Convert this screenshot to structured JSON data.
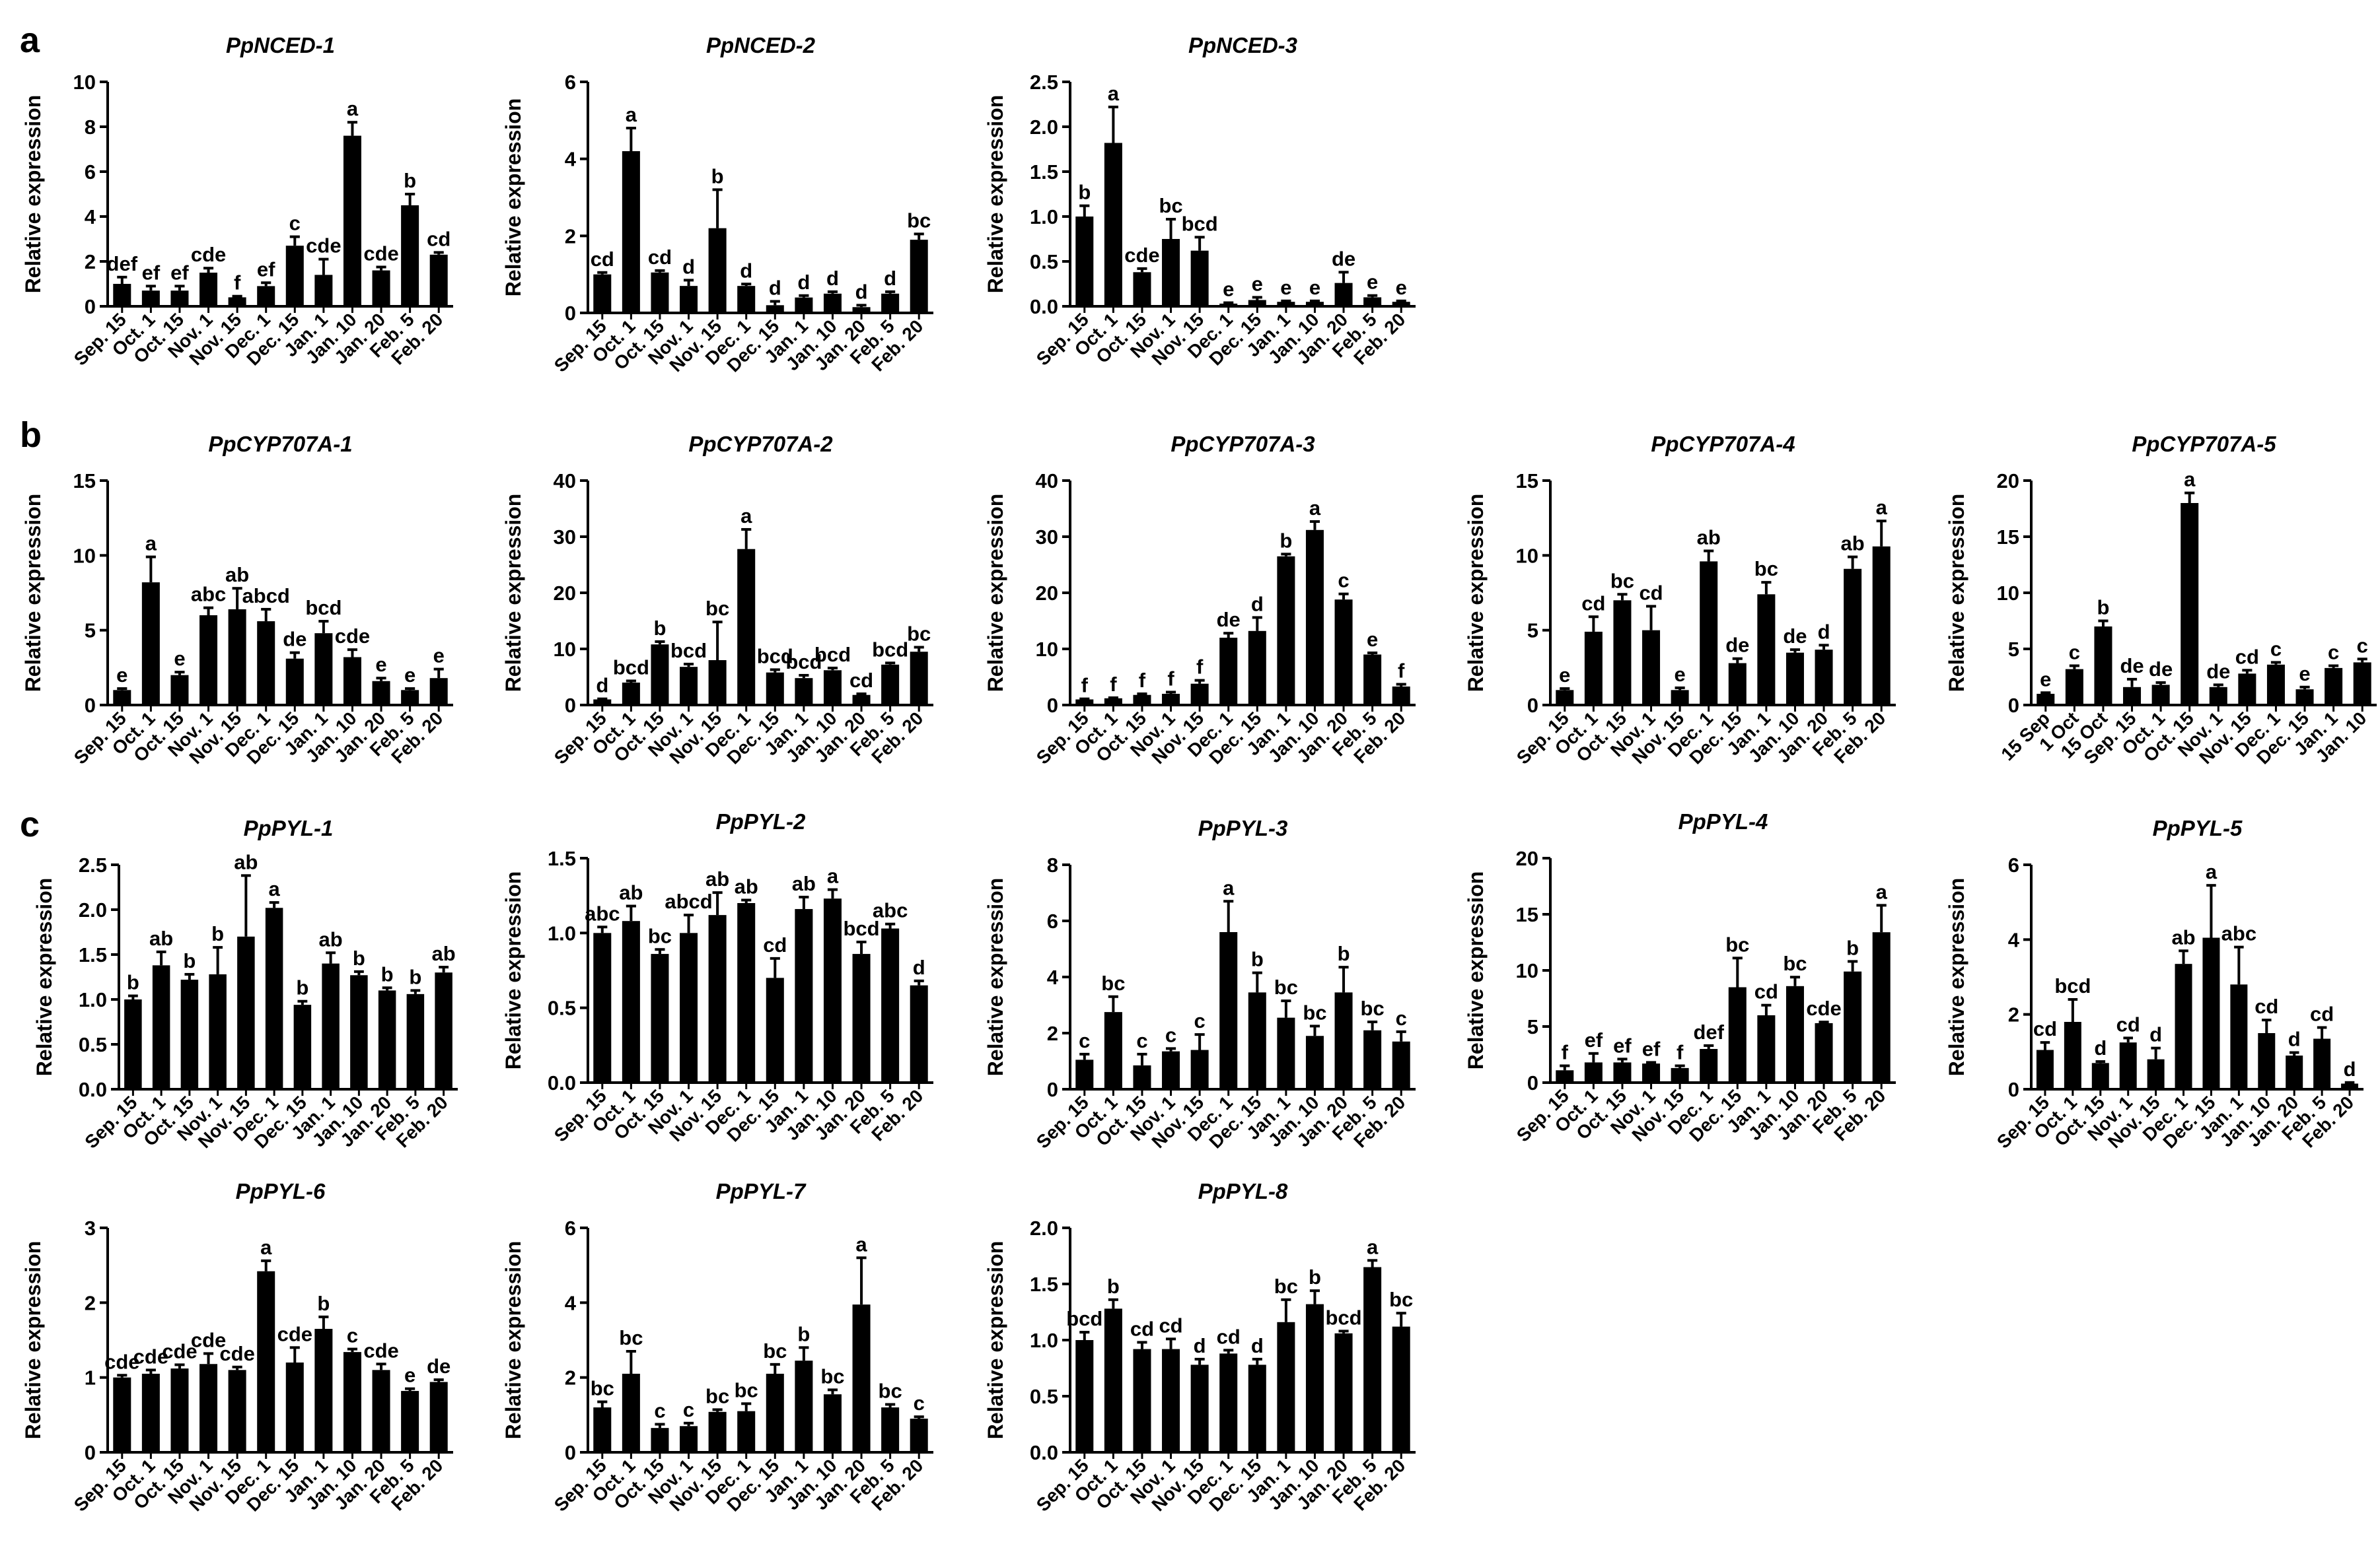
{
  "panel_labels": [
    "a",
    "b",
    "c"
  ],
  "chart_data": [
    {
      "type": "bar",
      "panel": "a",
      "title": "PpNCED-1",
      "ylabel": "Relative expression",
      "categories": [
        "Sep. 15",
        "Oct. 1",
        "Oct. 15",
        "Nov. 1",
        "Nov. 15",
        "Dec. 1",
        "Dec. 15",
        "Jan. 1",
        "Jan. 10",
        "Jan. 20",
        "Feb. 5",
        "Feb. 20"
      ],
      "values": [
        1.0,
        0.7,
        0.7,
        1.5,
        0.4,
        0.9,
        2.7,
        1.4,
        7.6,
        1.6,
        4.5,
        2.3
      ],
      "errors": [
        0.3,
        0.2,
        0.2,
        0.2,
        0.05,
        0.15,
        0.4,
        0.7,
        0.6,
        0.15,
        0.5,
        0.1
      ],
      "letters": [
        "def",
        "ef",
        "ef",
        "cde",
        "f",
        "ef",
        "c",
        "cde",
        "a",
        "cde",
        "b",
        "cd"
      ],
      "ylim": [
        0,
        10
      ],
      "yticks": [
        "0",
        "2",
        "4",
        "6",
        "8",
        "10"
      ]
    },
    {
      "type": "bar",
      "panel": "a",
      "title": "PpNCED-2",
      "ylabel": "Relative expression",
      "categories": [
        "Sep. 15",
        "Oct. 1",
        "Oct. 15",
        "Nov. 1",
        "Nov. 15",
        "Dec. 1",
        "Dec. 15",
        "Jan. 1",
        "Jan. 10",
        "Jan. 20",
        "Feb. 5",
        "Feb. 20"
      ],
      "values": [
        1.0,
        4.2,
        1.05,
        0.7,
        2.2,
        0.7,
        0.2,
        0.4,
        0.5,
        0.15,
        0.5,
        1.9
      ],
      "errors": [
        0.05,
        0.6,
        0.05,
        0.15,
        1.0,
        0.05,
        0.1,
        0.05,
        0.05,
        0.05,
        0.05,
        0.15
      ],
      "letters": [
        "cd",
        "a",
        "cd",
        "d",
        "b",
        "d",
        "d",
        "d",
        "d",
        "d",
        "d",
        "bc"
      ],
      "ylim": [
        0,
        6
      ],
      "yticks": [
        "0",
        "2",
        "4",
        "6"
      ]
    },
    {
      "type": "bar",
      "panel": "a",
      "title": "PpNCED-3",
      "ylabel": "Relative expression",
      "categories": [
        "Sep. 15",
        "Oct. 1",
        "Oct. 15",
        "Nov. 1",
        "Nov. 15",
        "Dec. 1",
        "Dec. 15",
        "Jan. 1",
        "Jan. 10",
        "Jan. 20",
        "Feb. 5",
        "Feb. 20"
      ],
      "values": [
        1.0,
        1.82,
        0.38,
        0.75,
        0.62,
        0.03,
        0.07,
        0.05,
        0.05,
        0.26,
        0.1,
        0.05
      ],
      "errors": [
        0.12,
        0.4,
        0.04,
        0.22,
        0.15,
        0.01,
        0.03,
        0.01,
        0.01,
        0.12,
        0.02,
        0.01
      ],
      "letters": [
        "b",
        "a",
        "cde",
        "bc",
        "bcd",
        "e",
        "e",
        "e",
        "e",
        "de",
        "e",
        "e"
      ],
      "ylim": [
        0,
        2.5
      ],
      "yticks": [
        "0.0",
        "0.5",
        "1.0",
        "1.5",
        "2.0",
        "2.5"
      ]
    },
    {
      "type": "bar",
      "panel": "b",
      "title": "PpCYP707A-1",
      "ylabel": "Relative expression",
      "categories": [
        "Sep. 15",
        "Oct. 1",
        "Oct. 15",
        "Nov. 1",
        "Nov. 15",
        "Dec. 1",
        "Dec. 15",
        "Jan. 1",
        "Jan. 10",
        "Jan. 20",
        "Feb. 5",
        "Feb. 20"
      ],
      "values": [
        1.0,
        8.2,
        2.0,
        6.0,
        6.4,
        5.6,
        3.1,
        4.8,
        3.2,
        1.6,
        1.0,
        1.8
      ],
      "errors": [
        0.1,
        1.7,
        0.2,
        0.5,
        1.4,
        0.8,
        0.4,
        0.8,
        0.5,
        0.2,
        0.1,
        0.6
      ],
      "letters": [
        "e",
        "a",
        "e",
        "abc",
        "ab",
        "abcd",
        "de",
        "bcd",
        "cde",
        "e",
        "e",
        "e"
      ],
      "ylim": [
        0,
        15
      ],
      "yticks": [
        "0",
        "5",
        "10",
        "15"
      ]
    },
    {
      "type": "bar",
      "panel": "b",
      "title": "PpCYP707A-2",
      "ylabel": "Relative expression",
      "categories": [
        "Sep. 15",
        "Oct. 1",
        "Oct. 15",
        "Nov. 1",
        "Nov. 15",
        "Dec. 1",
        "Dec. 15",
        "Jan. 1",
        "Jan. 10",
        "Jan. 20",
        "Feb. 5",
        "Feb. 20"
      ],
      "values": [
        1.0,
        4.0,
        10.8,
        6.8,
        8.0,
        27.8,
        5.8,
        4.8,
        6.2,
        1.8,
        7.2,
        9.5
      ],
      "errors": [
        0.1,
        0.3,
        0.5,
        0.5,
        6.8,
        3.5,
        0.5,
        0.5,
        0.4,
        0.2,
        0.3,
        0.8
      ],
      "letters": [
        "d",
        "bcd",
        "b",
        "bcd",
        "bc",
        "a",
        "bcd",
        "bcd",
        "bcd",
        "cd",
        "bcd",
        "bc"
      ],
      "ylim": [
        0,
        40
      ],
      "yticks": [
        "0",
        "10",
        "20",
        "30",
        "40"
      ]
    },
    {
      "type": "bar",
      "panel": "b",
      "title": "PpCYP707A-3",
      "ylabel": "Relative expression",
      "categories": [
        "Sep. 15",
        "Oct. 1",
        "Oct. 15",
        "Nov. 1",
        "Nov. 15",
        "Dec. 1",
        "Dec. 15",
        "Jan. 1",
        "Jan. 10",
        "Jan. 20",
        "Feb. 5",
        "Feb. 20"
      ],
      "values": [
        1.0,
        1.2,
        1.8,
        2.0,
        3.8,
        12.0,
        13.2,
        26.5,
        31.2,
        18.8,
        9.0,
        3.3
      ],
      "errors": [
        0.1,
        0.1,
        0.2,
        0.3,
        0.6,
        0.8,
        2.4,
        0.4,
        1.5,
        1.0,
        0.3,
        0.4
      ],
      "letters": [
        "f",
        "f",
        "f",
        "f",
        "f",
        "de",
        "d",
        "b",
        "a",
        "c",
        "e",
        "f"
      ],
      "ylim": [
        0,
        40
      ],
      "yticks": [
        "0",
        "10",
        "20",
        "30",
        "40"
      ]
    },
    {
      "type": "bar",
      "panel": "b",
      "title": "PpCYP707A-4",
      "ylabel": "Relative expression",
      "categories": [
        "Sep. 15",
        "Oct. 1",
        "Oct. 15",
        "Nov. 1",
        "Nov. 15",
        "Dec. 1",
        "Dec. 15",
        "Jan. 1",
        "Jan. 10",
        "Jan. 20",
        "Feb. 5",
        "Feb. 20"
      ],
      "values": [
        1.0,
        4.9,
        7.0,
        5.0,
        1.0,
        9.6,
        2.8,
        7.4,
        3.5,
        3.7,
        9.1,
        10.6
      ],
      "errors": [
        0.1,
        1.0,
        0.4,
        1.6,
        0.15,
        0.7,
        0.3,
        0.8,
        0.2,
        0.3,
        0.8,
        1.7
      ],
      "letters": [
        "e",
        "cd",
        "bc",
        "cd",
        "e",
        "ab",
        "de",
        "bc",
        "de",
        "d",
        "ab",
        "a"
      ],
      "ylim": [
        0,
        15
      ],
      "yticks": [
        "0",
        "5",
        "10",
        "15"
      ]
    },
    {
      "type": "bar",
      "panel": "b",
      "title": "PpCYP707A-5",
      "ylabel": "Relative expression",
      "categories": [
        "15 Sep",
        "1 Oct",
        "15 Oct",
        "Sep. 15",
        "Oct. 1",
        "Oct. 15",
        "Nov. 1",
        "Nov. 15",
        "Dec. 1",
        "Dec. 15",
        "Jan. 1",
        "Jan. 10"
      ],
      "values": [
        1.0,
        3.2,
        7.0,
        1.6,
        1.8,
        18.0,
        1.6,
        2.8,
        3.6,
        1.4,
        3.3,
        3.8
      ],
      "errors": [
        0.1,
        0.3,
        0.5,
        0.7,
        0.2,
        0.9,
        0.2,
        0.3,
        0.2,
        0.2,
        0.2,
        0.3
      ],
      "letters": [
        "e",
        "c",
        "b",
        "de",
        "de",
        "a",
        "de",
        "cd",
        "c",
        "e",
        "c",
        "c"
      ],
      "ylim": [
        0,
        20
      ],
      "yticks": [
        "0",
        "5",
        "10",
        "15",
        "20"
      ]
    },
    {
      "type": "bar",
      "panel": "c",
      "title": "PpPYL-1",
      "ylabel": "Relative expression",
      "categories": [
        "Sep. 15",
        "Oct. 1",
        "Oct. 15",
        "Nov. 1",
        "Nov. 15",
        "Dec. 1",
        "Dec. 15",
        "Jan. 1",
        "Jan. 10",
        "Jan. 20",
        "Feb. 5",
        "Feb. 20"
      ],
      "values": [
        1.0,
        1.38,
        1.22,
        1.28,
        1.7,
        2.02,
        0.94,
        1.4,
        1.27,
        1.1,
        1.06,
        1.3
      ],
      "errors": [
        0.04,
        0.15,
        0.06,
        0.3,
        0.68,
        0.06,
        0.04,
        0.12,
        0.04,
        0.03,
        0.04,
        0.06
      ],
      "letters": [
        "b",
        "ab",
        "b",
        "b",
        "ab",
        "a",
        "b",
        "ab",
        "b",
        "b",
        "b",
        "ab"
      ],
      "ylim": [
        0,
        2.5
      ],
      "yticks": [
        "0.0",
        "0.5",
        "1.0",
        "1.5",
        "2.0",
        "2.5"
      ]
    },
    {
      "type": "bar",
      "panel": "c",
      "title": "PpPYL-2",
      "ylabel": "Relative expression",
      "categories": [
        "Sep. 15",
        "Oct. 1",
        "Oct. 15",
        "Nov. 1",
        "Nov. 15",
        "Dec. 1",
        "Dec. 15",
        "Jan. 1",
        "Jan. 10",
        "Jan. 20",
        "Feb. 5",
        "Feb. 20"
      ],
      "values": [
        1.0,
        1.08,
        0.86,
        1.0,
        1.12,
        1.2,
        0.7,
        1.16,
        1.23,
        0.86,
        1.03,
        0.65
      ],
      "errors": [
        0.04,
        0.1,
        0.03,
        0.12,
        0.15,
        0.02,
        0.13,
        0.08,
        0.06,
        0.08,
        0.03,
        0.03
      ],
      "letters": [
        "abc",
        "ab",
        "bc",
        "abcd",
        "ab",
        "ab",
        "cd",
        "ab",
        "a",
        "bcd",
        "abc",
        "d"
      ],
      "ylim": [
        0,
        1.5
      ],
      "yticks": [
        "0.0",
        "0.5",
        "1.0",
        "1.5"
      ]
    },
    {
      "type": "bar",
      "panel": "c",
      "title": "PpPYL-3",
      "ylabel": "Relative expression",
      "categories": [
        "Sep. 15",
        "Oct. 1",
        "Oct. 15",
        "Nov. 1",
        "Nov. 15",
        "Dec. 1",
        "Dec. 15",
        "Jan. 1",
        "Jan. 10",
        "Jan. 20",
        "Feb. 5",
        "Feb. 20"
      ],
      "values": [
        1.05,
        2.75,
        0.85,
        1.35,
        1.4,
        5.6,
        3.45,
        2.55,
        1.9,
        3.45,
        2.1,
        1.7
      ],
      "errors": [
        0.2,
        0.55,
        0.4,
        0.1,
        0.55,
        1.1,
        0.7,
        0.6,
        0.35,
        0.9,
        0.3,
        0.35
      ],
      "letters": [
        "c",
        "bc",
        "c",
        "c",
        "c",
        "a",
        "b",
        "bc",
        "bc",
        "b",
        "bc",
        "c"
      ],
      "ylim": [
        0,
        8
      ],
      "yticks": [
        "0",
        "2",
        "4",
        "6",
        "8"
      ]
    },
    {
      "type": "bar",
      "panel": "c",
      "title": "PpPYL-4",
      "ylabel": "Relative expression",
      "categories": [
        "Sep. 15",
        "Oct. 1",
        "Oct. 15",
        "Nov. 1",
        "Nov. 15",
        "Dec. 1",
        "Dec. 15",
        "Jan. 1",
        "Jan. 10",
        "Jan. 20",
        "Feb. 5",
        "Feb. 20"
      ],
      "values": [
        1.1,
        1.8,
        1.8,
        1.7,
        1.3,
        3.0,
        8.5,
        6.0,
        8.6,
        5.3,
        9.9,
        13.4
      ],
      "errors": [
        0.4,
        0.8,
        0.3,
        0.1,
        0.2,
        0.3,
        2.6,
        0.9,
        0.8,
        0.1,
        0.9,
        2.4
      ],
      "letters": [
        "f",
        "ef",
        "ef",
        "ef",
        "f",
        "def",
        "bc",
        "cd",
        "bc",
        "cde",
        "b",
        "a"
      ],
      "ylim": [
        0,
        20
      ],
      "yticks": [
        "0",
        "5",
        "10",
        "15",
        "20"
      ]
    },
    {
      "type": "bar",
      "panel": "c",
      "title": "PpPYL-5",
      "ylabel": "Relative expression",
      "categories": [
        "Sep. 15",
        "Oct. 1",
        "Oct. 15",
        "Nov. 1",
        "Nov. 15",
        "Dec. 1",
        "Dec. 15",
        "Jan. 1",
        "Jan. 10",
        "Jan. 20",
        "Feb. 5",
        "Feb. 20"
      ],
      "values": [
        1.05,
        1.8,
        0.7,
        1.25,
        0.8,
        3.35,
        4.05,
        2.8,
        1.5,
        0.9,
        1.35,
        0.15
      ],
      "errors": [
        0.2,
        0.6,
        0.04,
        0.12,
        0.3,
        0.35,
        1.4,
        1.0,
        0.35,
        0.08,
        0.3,
        0.03
      ],
      "letters": [
        "cd",
        "bcd",
        "d",
        "cd",
        "d",
        "ab",
        "a",
        "abc",
        "cd",
        "d",
        "cd",
        "d"
      ],
      "ylim": [
        0,
        6
      ],
      "yticks": [
        "0",
        "2",
        "4",
        "6"
      ]
    },
    {
      "type": "bar",
      "panel": "c",
      "title": "PpPYL-6",
      "ylabel": "Relative expression",
      "categories": [
        "Sep. 15",
        "Oct. 1",
        "Oct. 15",
        "Nov. 1",
        "Nov. 15",
        "Dec. 1",
        "Dec. 15",
        "Jan. 1",
        "Jan. 10",
        "Jan. 20",
        "Feb. 5",
        "Feb. 20"
      ],
      "values": [
        1.0,
        1.05,
        1.12,
        1.18,
        1.1,
        2.42,
        1.2,
        1.65,
        1.34,
        1.1,
        0.82,
        0.94
      ],
      "errors": [
        0.03,
        0.05,
        0.05,
        0.14,
        0.04,
        0.14,
        0.2,
        0.16,
        0.04,
        0.08,
        0.03,
        0.03
      ],
      "letters": [
        "cde",
        "cde",
        "cde",
        "cde",
        "cde",
        "a",
        "cde",
        "b",
        "c",
        "cde",
        "e",
        "de"
      ],
      "ylim": [
        0,
        3
      ],
      "yticks": [
        "0",
        "1",
        "2",
        "3"
      ]
    },
    {
      "type": "bar",
      "panel": "c",
      "title": "PpPYL-7",
      "ylabel": "Relative expression",
      "categories": [
        "Sep. 15",
        "Oct. 1",
        "Oct. 15",
        "Nov. 1",
        "Nov. 15",
        "Dec. 1",
        "Dec. 15",
        "Jan. 1",
        "Jan. 10",
        "Jan. 20",
        "Feb. 5",
        "Feb. 20"
      ],
      "values": [
        1.2,
        2.1,
        0.65,
        0.7,
        1.08,
        1.1,
        2.1,
        2.45,
        1.55,
        3.95,
        1.2,
        0.9
      ],
      "errors": [
        0.15,
        0.6,
        0.1,
        0.08,
        0.06,
        0.2,
        0.25,
        0.35,
        0.12,
        1.25,
        0.08,
        0.05
      ],
      "letters": [
        "bc",
        "bc",
        "c",
        "c",
        "bc",
        "bc",
        "bc",
        "b",
        "bc",
        "a",
        "bc",
        "c"
      ],
      "ylim": [
        0,
        6
      ],
      "yticks": [
        "0",
        "2",
        "4",
        "6"
      ]
    },
    {
      "type": "bar",
      "panel": "c",
      "title": "PpPYL-8",
      "ylabel": "Relative expression",
      "categories": [
        "Sep. 15",
        "Oct. 1",
        "Oct. 15",
        "Nov. 1",
        "Nov. 15",
        "Dec. 1",
        "Dec. 15",
        "Jan. 1",
        "Jan. 10",
        "Jan. 20",
        "Feb. 5",
        "Feb. 20"
      ],
      "values": [
        1.0,
        1.28,
        0.92,
        0.92,
        0.78,
        0.88,
        0.78,
        1.16,
        1.32,
        1.06,
        1.65,
        1.12
      ],
      "errors": [
        0.07,
        0.08,
        0.06,
        0.09,
        0.05,
        0.03,
        0.05,
        0.2,
        0.12,
        0.02,
        0.06,
        0.12
      ],
      "letters": [
        "bcd",
        "b",
        "cd",
        "cd",
        "d",
        "cd",
        "d",
        "bc",
        "b",
        "bcd",
        "a",
        "bc"
      ],
      "ylim": [
        0,
        2.0
      ],
      "yticks": [
        "0.0",
        "0.5",
        "1.0",
        "1.5",
        "2.0"
      ]
    }
  ]
}
